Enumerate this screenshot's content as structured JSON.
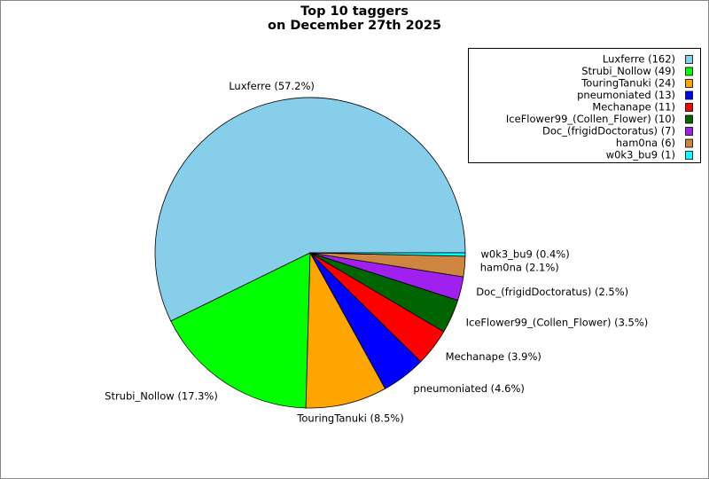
{
  "chart_data": {
    "type": "pie",
    "title": [
      "Top 10 taggers",
      "on December 27th 2025"
    ],
    "categories": [
      "Luxferre",
      "Strubi_Nollow",
      "TouringTanuki",
      "pneumoniated",
      "Mechanape",
      "IceFlower99_(Collen_Flower)",
      "Doc_(frigidDoctoratus)",
      "ham0na",
      "w0k3_bu9"
    ],
    "values": [
      162,
      49,
      24,
      13,
      11,
      10,
      7,
      6,
      1
    ],
    "slice_labels": [
      "Luxferre (57.2%)",
      "Strubi_Nollow (17.3%)",
      "TouringTanuki (8.5%)",
      "pneumoniated (4.6%)",
      "Mechanape (3.9%)",
      "IceFlower99_(Collen_Flower) (3.5%)",
      "Doc_(frigidDoctoratus) (2.5%)",
      "ham0na (2.1%)",
      "w0k3_bu9 (0.4%)"
    ],
    "legend": [
      "Luxferre (162)",
      "Strubi_Nollow (49)",
      "TouringTanuki (24)",
      "pneumoniated (13)",
      "Mechanape (11)",
      "IceFlower99_(Collen_Flower) (10)",
      "Doc_(frigidDoctoratus) (7)",
      "ham0na (6)",
      "w0k3_bu9 (1)"
    ],
    "colors": [
      "#87ceeb",
      "#00ff00",
      "#ffa500",
      "#0000ff",
      "#ff0000",
      "#006400",
      "#a020f0",
      "#cd853f",
      "#00ffff"
    ],
    "legend_position": "top-right"
  }
}
